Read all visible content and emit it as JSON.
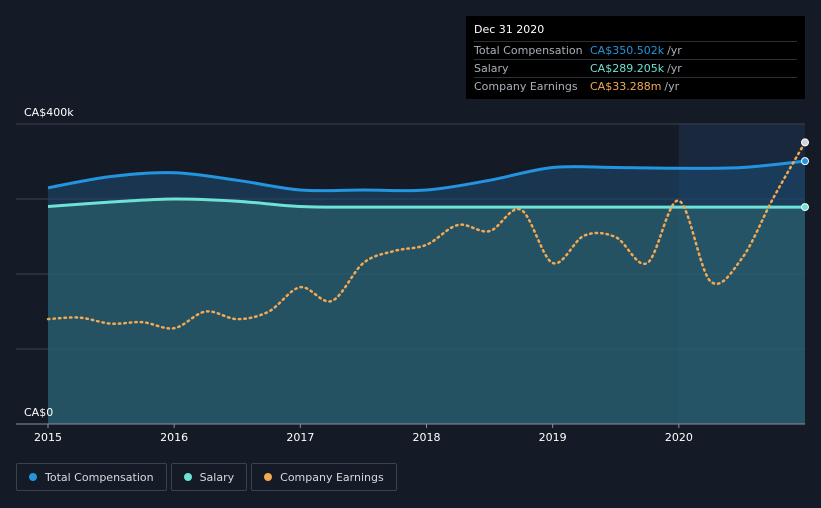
{
  "tooltip": {
    "date": "Dec 31 2020",
    "rows": [
      {
        "label": "Total Compensation",
        "value": "CA$350.502k",
        "unit": "/yr",
        "color": "#2394df"
      },
      {
        "label": "Salary",
        "value": "CA$289.205k",
        "unit": "/yr",
        "color": "#6de2d5"
      },
      {
        "label": "Company Earnings",
        "value": "CA$33.288m",
        "unit": "/yr",
        "color": "#f2a953"
      }
    ]
  },
  "legend": [
    {
      "label": "Total Compensation",
      "color": "#2394df"
    },
    {
      "label": "Salary",
      "color": "#6de2d5"
    },
    {
      "label": "Company Earnings",
      "color": "#f2a953"
    }
  ],
  "chart_data": {
    "type": "line",
    "xlim": [
      2015,
      2021
    ],
    "ylim": [
      0,
      400000
    ],
    "x_ticks": [
      2015,
      2016,
      2017,
      2018,
      2019,
      2020
    ],
    "x_tick_labels": [
      "2015",
      "2016",
      "2017",
      "2018",
      "2019",
      "2020"
    ],
    "y_tick_labels": [
      "CA$0",
      "CA$400k"
    ],
    "grid": true,
    "highlight_from": 2020,
    "series": [
      {
        "name": "Total Compensation",
        "color": "#2394df",
        "style": "solid",
        "fill": true,
        "x": [
          2015,
          2015.5,
          2016,
          2016.5,
          2017,
          2017.5,
          2018,
          2018.5,
          2019,
          2019.5,
          2020,
          2020.5,
          2021
        ],
        "y": [
          315000,
          330000,
          335000,
          325000,
          312000,
          312000,
          312000,
          325000,
          342000,
          342000,
          341000,
          342000,
          350500
        ]
      },
      {
        "name": "Salary",
        "color": "#6de2d5",
        "style": "solid",
        "fill": true,
        "x": [
          2015,
          2015.5,
          2016,
          2016.5,
          2017,
          2017.5,
          2018,
          2018.5,
          2019,
          2019.5,
          2020,
          2020.5,
          2021
        ],
        "y": [
          290000,
          296000,
          300000,
          297000,
          290000,
          289200,
          289200,
          289200,
          289200,
          289200,
          289200,
          289200,
          289200
        ]
      },
      {
        "name": "Company Earnings",
        "color": "#f2a953",
        "style": "dotted",
        "axis": "secondary",
        "x": [
          2015,
          2015.25,
          2015.5,
          2015.75,
          2016,
          2016.25,
          2016.5,
          2016.75,
          2017,
          2017.25,
          2017.5,
          2017.75,
          2018,
          2018.25,
          2018.5,
          2018.75,
          2019,
          2019.25,
          2019.5,
          2019.75,
          2020,
          2020.25,
          2020.5,
          2020.75,
          2021
        ],
        "y": [
          10.0,
          10.2,
          9.4,
          9.6,
          8.8,
          11.0,
          10.0,
          11.0,
          14.2,
          12.4,
          17.4,
          19.0,
          19.8,
          22.4,
          21.6,
          24.4,
          17.4,
          21.0,
          20.8,
          17.4,
          25.6,
          15.0,
          18.0,
          26.0,
          33.288
        ]
      }
    ]
  }
}
